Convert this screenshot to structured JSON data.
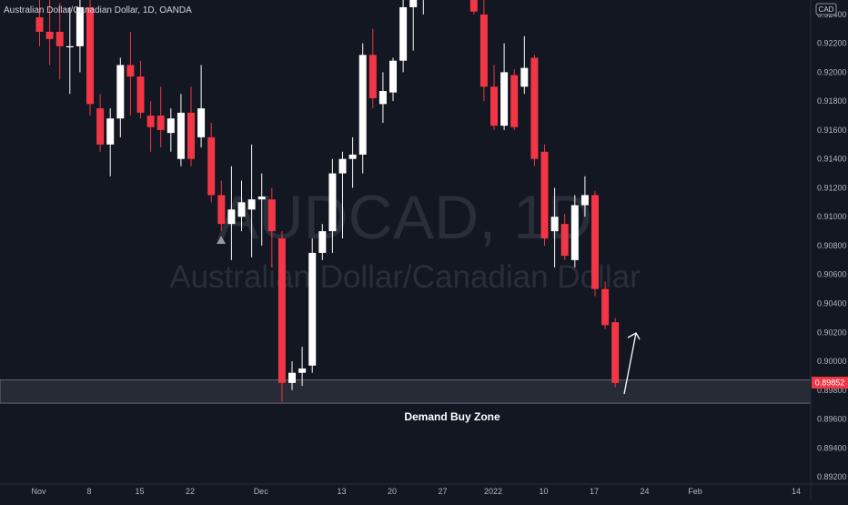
{
  "chart_data": {
    "type": "candlestick",
    "title": "Australian Dollar/Canadian Dollar, 1D, OANDA",
    "watermark_symbol": "AUDCAD, 1D",
    "watermark_name": "Australian Dollar/Canadian Dollar",
    "currency_label": "CAD",
    "current_price_label": "0.89852",
    "zone_label": "Demand Buy Zone",
    "zone": {
      "low": 0.8971,
      "high": 0.8987
    },
    "ylim": [
      0.8915,
      0.925
    ],
    "y_ticks": [
      "0.92200",
      "0.92000",
      "0.91800",
      "0.91600",
      "0.91400",
      "0.91200",
      "0.91000",
      "0.90800",
      "0.90600",
      "0.90400",
      "0.90200",
      "0.90000",
      "0.89800",
      "0.89600",
      "0.89400",
      "0.89200"
    ],
    "y_tick_partial": "0.92400",
    "x_ticks": [
      {
        "label": "Nov",
        "i": 0
      },
      {
        "label": "8",
        "i": 5
      },
      {
        "label": "15",
        "i": 10
      },
      {
        "label": "22",
        "i": 15
      },
      {
        "label": "Dec",
        "i": 22
      },
      {
        "label": "13",
        "i": 30
      },
      {
        "label": "20",
        "i": 35
      },
      {
        "label": "27",
        "i": 40
      },
      {
        "label": "2022",
        "i": 45
      },
      {
        "label": "10",
        "i": 50
      },
      {
        "label": "17",
        "i": 55
      },
      {
        "label": "24",
        "i": 60
      },
      {
        "label": "Feb",
        "i": 65
      },
      {
        "label": "14",
        "i": 75
      }
    ],
    "candles": [
      {
        "o": 0.9238,
        "h": 0.9255,
        "l": 0.9218,
        "c": 0.9228
      },
      {
        "o": 0.9228,
        "h": 0.9252,
        "l": 0.9205,
        "c": 0.9223
      },
      {
        "o": 0.9228,
        "h": 0.9248,
        "l": 0.9195,
        "c": 0.9218
      },
      {
        "o": 0.9218,
        "h": 0.9245,
        "l": 0.9185,
        "c": 0.9218
      },
      {
        "o": 0.9218,
        "h": 0.926,
        "l": 0.92,
        "c": 0.9245
      },
      {
        "o": 0.9245,
        "h": 0.926,
        "l": 0.917,
        "c": 0.9178
      },
      {
        "o": 0.9175,
        "h": 0.9185,
        "l": 0.9145,
        "c": 0.915
      },
      {
        "o": 0.915,
        "h": 0.9175,
        "l": 0.9128,
        "c": 0.9168
      },
      {
        "o": 0.9168,
        "h": 0.921,
        "l": 0.9155,
        "c": 0.9205
      },
      {
        "o": 0.9205,
        "h": 0.9228,
        "l": 0.917,
        "c": 0.9197
      },
      {
        "o": 0.9197,
        "h": 0.9208,
        "l": 0.9168,
        "c": 0.9172
      },
      {
        "o": 0.917,
        "h": 0.918,
        "l": 0.9145,
        "c": 0.9162
      },
      {
        "o": 0.917,
        "h": 0.919,
        "l": 0.9148,
        "c": 0.916
      },
      {
        "o": 0.9158,
        "h": 0.9175,
        "l": 0.9145,
        "c": 0.9168
      },
      {
        "o": 0.914,
        "h": 0.9185,
        "l": 0.9135,
        "c": 0.9172
      },
      {
        "o": 0.9172,
        "h": 0.919,
        "l": 0.9135,
        "c": 0.914
      },
      {
        "o": 0.9155,
        "h": 0.9205,
        "l": 0.9148,
        "c": 0.9175
      },
      {
        "o": 0.9155,
        "h": 0.9165,
        "l": 0.911,
        "c": 0.9115
      },
      {
        "o": 0.9115,
        "h": 0.9125,
        "l": 0.909,
        "c": 0.9095
      },
      {
        "o": 0.9095,
        "h": 0.9135,
        "l": 0.907,
        "c": 0.9105
      },
      {
        "o": 0.91,
        "h": 0.9125,
        "l": 0.909,
        "c": 0.911
      },
      {
        "o": 0.9105,
        "h": 0.915,
        "l": 0.9072,
        "c": 0.9112
      },
      {
        "o": 0.9112,
        "h": 0.913,
        "l": 0.908,
        "c": 0.9114
      },
      {
        "o": 0.9112,
        "h": 0.912,
        "l": 0.9065,
        "c": 0.909
      },
      {
        "o": 0.9085,
        "h": 0.909,
        "l": 0.8972,
        "c": 0.8985
      },
      {
        "o": 0.8985,
        "h": 0.9,
        "l": 0.898,
        "c": 0.8992
      },
      {
        "o": 0.8992,
        "h": 0.901,
        "l": 0.8983,
        "c": 0.8995
      },
      {
        "o": 0.8997,
        "h": 0.9085,
        "l": 0.8992,
        "c": 0.9075
      },
      {
        "o": 0.9075,
        "h": 0.9095,
        "l": 0.907,
        "c": 0.909
      },
      {
        "o": 0.909,
        "h": 0.914,
        "l": 0.9075,
        "c": 0.913
      },
      {
        "o": 0.913,
        "h": 0.9145,
        "l": 0.9085,
        "c": 0.914
      },
      {
        "o": 0.914,
        "h": 0.9155,
        "l": 0.912,
        "c": 0.9143
      },
      {
        "o": 0.9143,
        "h": 0.922,
        "l": 0.913,
        "c": 0.9212
      },
      {
        "o": 0.9212,
        "h": 0.923,
        "l": 0.9175,
        "c": 0.9182
      },
      {
        "o": 0.9178,
        "h": 0.92,
        "l": 0.9165,
        "c": 0.9187
      },
      {
        "o": 0.9186,
        "h": 0.921,
        "l": 0.918,
        "c": 0.9208
      },
      {
        "o": 0.9208,
        "h": 0.925,
        "l": 0.92,
        "c": 0.9245
      },
      {
        "o": 0.9245,
        "h": 0.926,
        "l": 0.9215,
        "c": 0.9255
      },
      {
        "o": 0.9255,
        "h": 0.9265,
        "l": 0.924,
        "c": 0.926
      },
      null,
      null,
      null,
      null,
      {
        "o": 0.9258,
        "h": 0.9262,
        "l": 0.924,
        "c": 0.9242
      },
      {
        "o": 0.924,
        "h": 0.925,
        "l": 0.918,
        "c": 0.919
      },
      {
        "o": 0.919,
        "h": 0.9205,
        "l": 0.916,
        "c": 0.9163
      },
      {
        "o": 0.9163,
        "h": 0.922,
        "l": 0.916,
        "c": 0.92
      },
      {
        "o": 0.9198,
        "h": 0.9202,
        "l": 0.916,
        "c": 0.9162
      },
      {
        "o": 0.919,
        "h": 0.9225,
        "l": 0.9185,
        "c": 0.9203
      },
      {
        "o": 0.921,
        "h": 0.9212,
        "l": 0.9135,
        "c": 0.914
      },
      {
        "o": 0.9145,
        "h": 0.915,
        "l": 0.908,
        "c": 0.9085
      },
      {
        "o": 0.909,
        "h": 0.912,
        "l": 0.9065,
        "c": 0.91
      },
      {
        "o": 0.9095,
        "h": 0.9102,
        "l": 0.907,
        "c": 0.9073
      },
      {
        "o": 0.907,
        "h": 0.9115,
        "l": 0.9065,
        "c": 0.9108
      },
      {
        "o": 0.9108,
        "h": 0.9128,
        "l": 0.91,
        "c": 0.9115
      },
      {
        "o": 0.9115,
        "h": 0.9118,
        "l": 0.9045,
        "c": 0.905
      },
      {
        "o": 0.905,
        "h": 0.9055,
        "l": 0.9022,
        "c": 0.9025
      },
      {
        "o": 0.9027,
        "h": 0.903,
        "l": 0.8982,
        "c": 0.8985
      }
    ],
    "colors": {
      "up": "#ffffff",
      "down": "#f23645",
      "background": "#131722",
      "grid_text": "#b2b5be",
      "zone": "#2a2e39",
      "label_bg": "#f23645"
    }
  }
}
